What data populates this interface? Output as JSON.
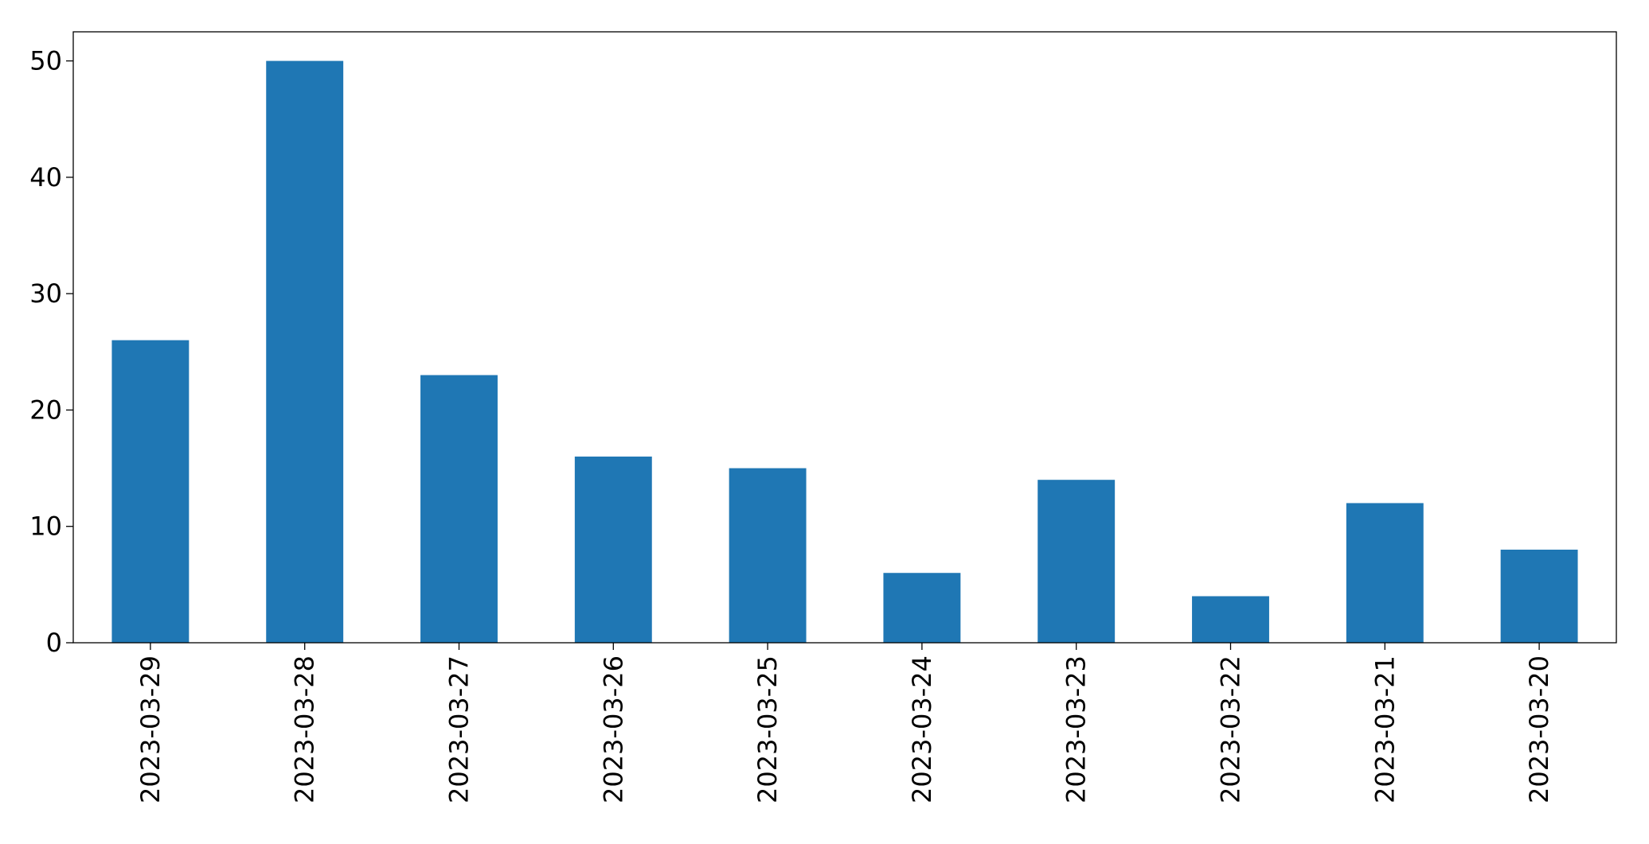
{
  "chart_data": {
    "type": "bar",
    "categories": [
      "2023-03-29",
      "2023-03-28",
      "2023-03-27",
      "2023-03-26",
      "2023-03-25",
      "2023-03-24",
      "2023-03-23",
      "2023-03-22",
      "2023-03-21",
      "2023-03-20"
    ],
    "values": [
      26,
      50,
      23,
      16,
      15,
      6,
      14,
      4,
      12,
      8
    ],
    "color": "#1f77b4",
    "ylim": [
      0,
      52.5
    ],
    "yticks": [
      0,
      10,
      20,
      30,
      40,
      50
    ],
    "grid": false
  }
}
